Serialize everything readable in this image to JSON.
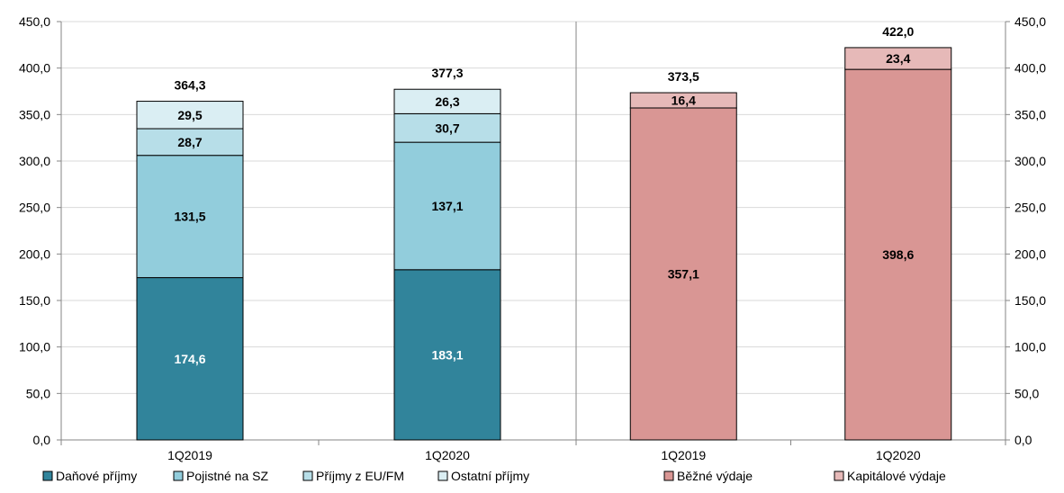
{
  "chart_data": {
    "type": "bar",
    "stacked": true,
    "ylim": [
      0,
      450
    ],
    "ytick_step": 50,
    "ytick_labels": [
      "0,0",
      "50,0",
      "100,0",
      "150,0",
      "200,0",
      "250,0",
      "300,0",
      "350,0",
      "400,0",
      "450,0"
    ],
    "grid": true,
    "legend_position": "bottom",
    "panels": [
      {
        "id": "revenues",
        "categories": [
          "1Q2019",
          "1Q2020"
        ],
        "totals": [
          "364,3",
          "377,3"
        ],
        "series": [
          {
            "name": "Daňové příjmy",
            "values": [
              174.6,
              183.1
            ],
            "labels": [
              "174,6",
              "183,1"
            ],
            "color": "#31849b",
            "label_color": "#ffffff"
          },
          {
            "name": "Pojistné na SZ",
            "values": [
              131.5,
              137.1
            ],
            "labels": [
              "131,5",
              "137,1"
            ],
            "color": "#92cddc",
            "label_color": "#000000"
          },
          {
            "name": "Příjmy z EU/FM",
            "values": [
              28.7,
              30.7
            ],
            "labels": [
              "28,7",
              "30,7"
            ],
            "color": "#b7dee8",
            "label_color": "#000000"
          },
          {
            "name": "Ostatní příjmy",
            "values": [
              29.5,
              26.3
            ],
            "labels": [
              "29,5",
              "26,3"
            ],
            "color": "#daeef3",
            "label_color": "#000000"
          }
        ]
      },
      {
        "id": "expenditures",
        "categories": [
          "1Q2019",
          "1Q2020"
        ],
        "totals": [
          "373,5",
          "422,0"
        ],
        "series": [
          {
            "name": "Běžné výdaje",
            "values": [
              357.1,
              398.6
            ],
            "labels": [
              "357,1",
              "398,6"
            ],
            "color": "#d99694",
            "label_color": "#000000"
          },
          {
            "name": "Kapitálové výdaje",
            "values": [
              16.4,
              23.4
            ],
            "labels": [
              "16,4",
              "23,4"
            ],
            "color": "#e6b9b8",
            "label_color": "#000000"
          }
        ]
      }
    ]
  }
}
